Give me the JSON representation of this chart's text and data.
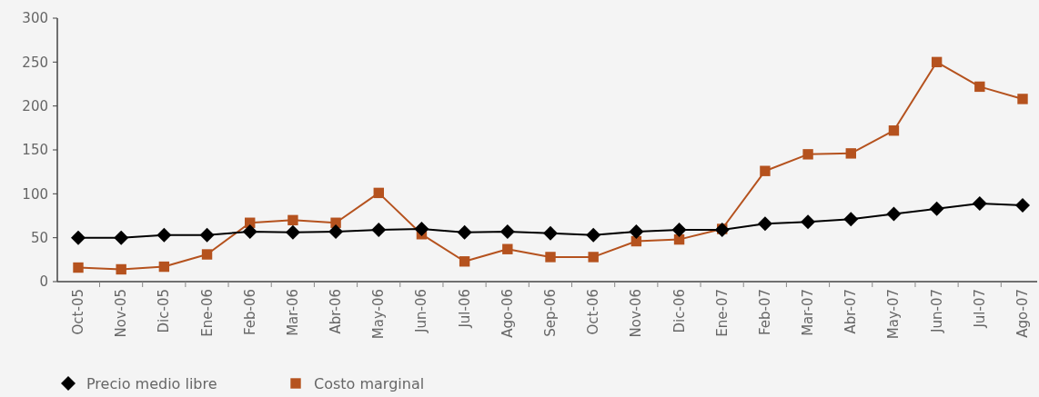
{
  "chart_data": {
    "type": "line",
    "categories": [
      "Oct-05",
      "Nov-05",
      "Dic-05",
      "Ene-06",
      "Feb-06",
      "Mar-06",
      "Abr-06",
      "May-06",
      "Jun-06",
      "Jul-06",
      "Ago-06",
      "Sep-06",
      "Oct-06",
      "Nov-06",
      "Dic-06",
      "Ene-07",
      "Feb-07",
      "Mar-07",
      "Abr-07",
      "May-07",
      "Jun-07",
      "Jul-07",
      "Ago-07"
    ],
    "series": [
      {
        "name": "Precio medio libre",
        "color": "#000000",
        "marker": "diamond",
        "values": [
          50,
          50,
          53,
          53,
          57,
          56,
          57,
          59,
          60,
          56,
          57,
          55,
          53,
          57,
          59,
          59,
          66,
          68,
          71,
          77,
          83,
          89,
          87
        ]
      },
      {
        "name": "Costo marginal",
        "color": "#b5521e",
        "marker": "square",
        "values": [
          16,
          14,
          17,
          31,
          67,
          70,
          67,
          101,
          54,
          23,
          37,
          28,
          28,
          46,
          48,
          60,
          126,
          145,
          146,
          172,
          250,
          222,
          208
        ]
      }
    ],
    "ylim": [
      0,
      300
    ],
    "yticks": [
      0,
      50,
      100,
      150,
      200,
      250,
      300
    ],
    "grid": false,
    "legend": "bottom left"
  }
}
